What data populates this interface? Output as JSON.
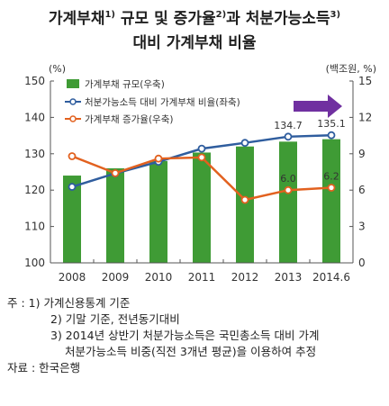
{
  "title": {
    "part1": "가계부채",
    "sup1": "1)",
    "part2": " 규모 및 증가율",
    "sup2": "2)",
    "part3": "과 처분가능소득",
    "sup3": "3)",
    "line2": "대비 가계부채 비율"
  },
  "chart_data": {
    "type": "bar",
    "categories": [
      "2008",
      "2009",
      "2010",
      "2011",
      "2012",
      "2013",
      "2014.6"
    ],
    "left_axis": {
      "unit": "(%)",
      "min": 100,
      "max": 150,
      "ticks": [
        100,
        110,
        120,
        130,
        140,
        150
      ]
    },
    "right_axis": {
      "unit": "(백조원, %)",
      "min": 0,
      "max": 15,
      "ticks": [
        0,
        3,
        6,
        9,
        12,
        15
      ]
    },
    "series": [
      {
        "name": "가계부채 규모(우축)",
        "type": "bar",
        "axis": "right",
        "color": "#3f9b35",
        "values": [
          7.2,
          7.8,
          8.4,
          9.1,
          9.6,
          10.0,
          10.2
        ]
      },
      {
        "name": "처분가능소득 대비 가계부채 비율(좌축)",
        "type": "line",
        "axis": "left",
        "color": "#2f5d9e",
        "values": [
          120.9,
          124.6,
          127.8,
          131.4,
          133.0,
          134.7,
          135.1
        ]
      },
      {
        "name": "가계부채 증가율(우축)",
        "type": "line",
        "axis": "right",
        "color": "#e2611f",
        "values": [
          8.8,
          7.4,
          8.6,
          8.7,
          5.2,
          6.0,
          6.2
        ]
      }
    ],
    "data_labels": [
      {
        "series": 1,
        "index": 5,
        "text": "134.7"
      },
      {
        "series": 1,
        "index": 6,
        "text": "135.1"
      },
      {
        "series": 2,
        "index": 5,
        "text": "6.0"
      },
      {
        "series": 2,
        "index": 6,
        "text": "6.2"
      }
    ],
    "grid": false,
    "legend_position": "top-left",
    "arrow_color": "#7030a0"
  },
  "notes": {
    "r1": "주 : 1) 가계신용통계 기준",
    "r2": "2) 기말 기준, 전년동기대비",
    "r3": "3) 2014년 상반기 처분가능소득은 국민총소득 대비 가계",
    "r4": "처분가능소득 비중(직전 3개년 평균)을 이용하여 추정",
    "r5": "자료 : 한국은행"
  }
}
